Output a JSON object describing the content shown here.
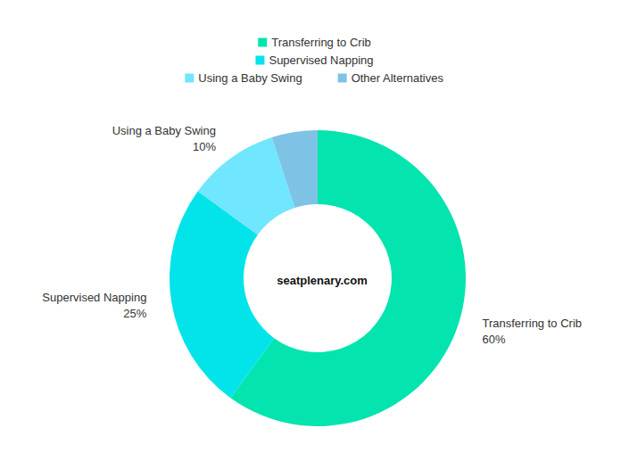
{
  "chart_data": {
    "type": "donut",
    "categories": [
      "Transferring to Crib",
      "Supervised Napping",
      "Using a Baby Swing",
      "Other Alternatives"
    ],
    "values": [
      60,
      25,
      10,
      5
    ],
    "value_labels": [
      "60%",
      "25%",
      "10%",
      null
    ],
    "colors": [
      "#03e4af",
      "#02e4ea",
      "#70e6ff",
      "#7ec3e6"
    ],
    "data_labels": true,
    "legend": "top",
    "annotations": [
      "seatplenary.com"
    ]
  }
}
